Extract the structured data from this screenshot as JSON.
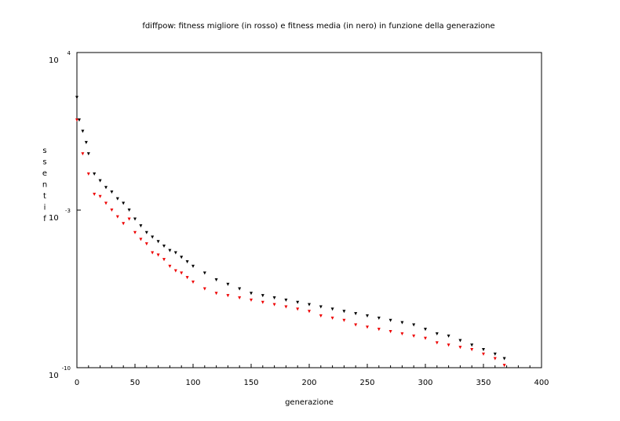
{
  "chart_data": {
    "type": "scatter",
    "title": "fdiffpow: fitness migliore (in rosso) e fitness media (in nero) in funzione della generazione",
    "xlabel": "generazione",
    "ylabel": "fitness",
    "xlim": [
      0,
      400
    ],
    "ylim_exponent": [
      -10,
      4
    ],
    "y_scale": "log10",
    "grid": false,
    "legend": "none",
    "x_ticks": [
      "0",
      "50",
      "100",
      "150",
      "200",
      "250",
      "300",
      "350",
      "400"
    ],
    "y_ticks": [
      {
        "base": "10",
        "exp": "4"
      },
      {
        "base": "10",
        "exp": "-3"
      },
      {
        "base": "10",
        "exp": "-10"
      }
    ],
    "colors": {
      "best": "#ee0000",
      "mean": "#000000"
    },
    "series": [
      {
        "color": "red",
        "x": [
          0,
          5,
          10,
          15,
          20,
          25,
          30,
          35,
          40,
          45,
          50,
          55,
          60,
          65,
          70,
          75,
          80,
          85,
          90,
          95,
          100,
          110,
          120,
          130,
          140,
          150,
          160,
          170,
          180,
          190,
          200,
          210,
          220,
          230,
          240,
          250,
          260,
          270,
          280,
          290,
          300,
          310,
          320,
          330,
          340,
          350,
          360,
          368
        ],
        "log10_y": [
          1.0,
          -0.5,
          -1.4,
          -2.3,
          -2.4,
          -2.7,
          -3.0,
          -3.3,
          -3.6,
          -3.4,
          -4.0,
          -4.3,
          -4.5,
          -4.9,
          -5.0,
          -5.2,
          -5.5,
          -5.7,
          -5.8,
          -6.0,
          -6.2,
          -6.5,
          -6.7,
          -6.8,
          -6.9,
          -7.0,
          -7.1,
          -7.2,
          -7.3,
          -7.4,
          -7.5,
          -7.7,
          -7.8,
          -7.9,
          -8.1,
          -8.2,
          -8.3,
          -8.4,
          -8.5,
          -8.6,
          -8.7,
          -8.9,
          -9.0,
          -9.1,
          -9.2,
          -9.4,
          -9.6,
          -9.9
        ]
      },
      {
        "color": "black",
        "x": [
          0,
          2,
          5,
          8,
          10,
          15,
          20,
          25,
          30,
          35,
          40,
          45,
          50,
          55,
          60,
          65,
          70,
          75,
          80,
          85,
          90,
          95,
          100,
          110,
          120,
          130,
          140,
          150,
          160,
          170,
          180,
          190,
          200,
          210,
          220,
          230,
          240,
          250,
          260,
          270,
          280,
          290,
          300,
          310,
          320,
          330,
          340,
          350,
          360,
          368
        ],
        "log10_y": [
          2.0,
          1.0,
          0.5,
          0.0,
          -0.5,
          -1.4,
          -1.7,
          -2.0,
          -2.2,
          -2.5,
          -2.7,
          -3.0,
          -3.4,
          -3.7,
          -4.0,
          -4.2,
          -4.4,
          -4.6,
          -4.8,
          -4.9,
          -5.1,
          -5.3,
          -5.5,
          -5.8,
          -6.1,
          -6.3,
          -6.5,
          -6.7,
          -6.8,
          -6.9,
          -7.0,
          -7.1,
          -7.2,
          -7.3,
          -7.4,
          -7.5,
          -7.6,
          -7.7,
          -7.8,
          -7.9,
          -8.0,
          -8.1,
          -8.3,
          -8.5,
          -8.6,
          -8.8,
          -9.0,
          -9.2,
          -9.4,
          -9.6
        ]
      }
    ]
  }
}
